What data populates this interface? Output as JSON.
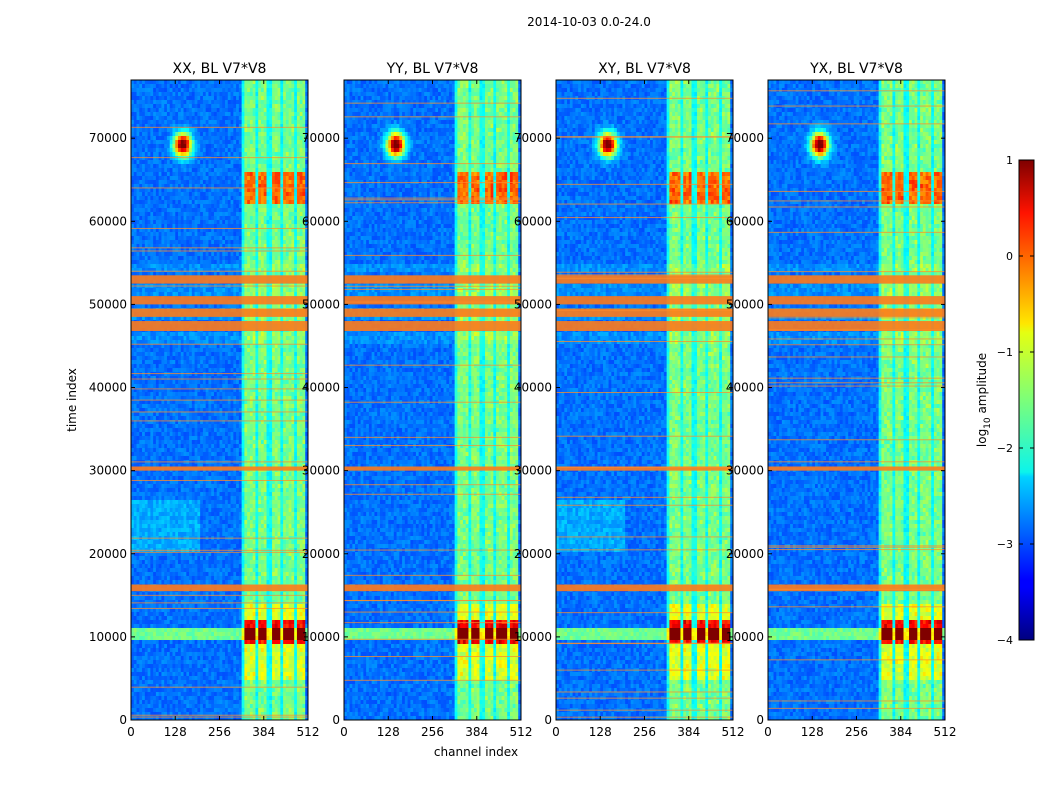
{
  "chart_data": {
    "type": "heatmap",
    "suptitle": "2014-10-03 0.0-24.0",
    "xlabel": "channel index",
    "ylabel": "time index",
    "xlim": [
      0,
      512
    ],
    "ylim": [
      0,
      77000
    ],
    "xticks": [
      0,
      128,
      256,
      384,
      512
    ],
    "yticks": [
      0,
      10000,
      20000,
      30000,
      40000,
      50000,
      60000,
      70000
    ],
    "panels": [
      {
        "title": "XX, BL V7*V8"
      },
      {
        "title": "YY, BL V7*V8"
      },
      {
        "title": "XY, BL V7*V8"
      },
      {
        "title": "YX, BL V7*V8"
      }
    ],
    "colorbar": {
      "label": "log10 amplitude",
      "label_main": "log",
      "label_sub": "10",
      "label_rest": " amplitude",
      "range": [
        -4,
        1
      ],
      "ticks": [
        1,
        0,
        -1,
        -2,
        -3,
        -4
      ],
      "tick_labels": [
        "1",
        "0",
        "−1",
        "−2",
        "−3",
        "−4"
      ]
    },
    "features": {
      "rfi_channel_ranges": [
        [
          325,
          360
        ],
        [
          370,
          395
        ],
        [
          405,
          430
        ],
        [
          440,
          470
        ],
        [
          480,
          500
        ]
      ],
      "strong_time_bands": [
        [
          46800,
          48000
        ],
        [
          48500,
          49500
        ],
        [
          50000,
          51000
        ],
        [
          52500,
          53500
        ],
        [
          15500,
          16300
        ],
        [
          30000,
          30500
        ]
      ],
      "burst_time": 10500,
      "hotspot": {
        "channel": 150,
        "time": 69200
      }
    }
  }
}
